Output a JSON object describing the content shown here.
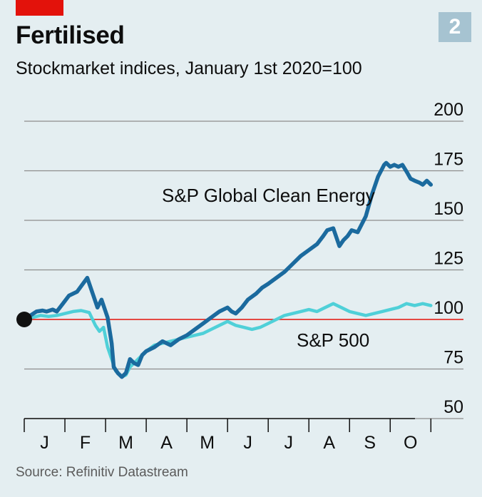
{
  "header": {
    "chart_number": "2",
    "title": "Fertilised",
    "subtitle": "Stockmarket indices, January 1st 2020=100",
    "source": "Source: Refinitiv Datastream"
  },
  "colors": {
    "background": "#e4eef1",
    "tag_red": "#e3120b",
    "badge": "#a6c3d1",
    "gridline": "#8d8d8d",
    "baseline_red": "#e3120b",
    "clean_energy": "#1b6a9e",
    "sp500": "#4fd0d8"
  },
  "chart_data": {
    "type": "line",
    "title": "Fertilised",
    "subtitle": "Stockmarket indices, January 1st 2020=100",
    "x_unit": "month of 2020",
    "xlim": [
      0,
      10.1
    ],
    "ylim": [
      50,
      200
    ],
    "y_ticks": [
      50,
      75,
      100,
      125,
      150,
      175,
      200
    ],
    "x_tick_labels": [
      "J",
      "F",
      "M",
      "A",
      "M",
      "J",
      "J",
      "A",
      "S",
      "O"
    ],
    "grid": true,
    "baseline": 100,
    "start_marker": [
      0,
      100
    ],
    "series": [
      {
        "name": "S&P Global Clean Energy",
        "color": "#1b6a9e",
        "x": [
          0,
          0.15,
          0.3,
          0.45,
          0.55,
          0.7,
          0.8,
          0.95,
          1.1,
          1.3,
          1.55,
          1.7,
          1.8,
          1.9,
          2.05,
          2.15,
          2.2,
          2.3,
          2.4,
          2.5,
          2.6,
          2.7,
          2.8,
          2.9,
          3.0,
          3.2,
          3.4,
          3.6,
          3.8,
          4.0,
          4.2,
          4.4,
          4.6,
          4.8,
          5.0,
          5.1,
          5.2,
          5.35,
          5.5,
          5.7,
          5.85,
          6.0,
          6.2,
          6.4,
          6.6,
          6.8,
          7.0,
          7.2,
          7.35,
          7.45,
          7.6,
          7.75,
          7.85,
          7.95,
          8.05,
          8.2,
          8.4,
          8.55,
          8.7,
          8.8,
          8.85,
          8.9,
          9.0,
          9.1,
          9.2,
          9.3,
          9.42,
          9.5,
          9.6,
          9.72,
          9.8,
          9.9,
          9.95,
          10.0
        ],
        "values": [
          100,
          102,
          104,
          104.5,
          104,
          105,
          104,
          108,
          112,
          114,
          121,
          112,
          106,
          110,
          101,
          88,
          76,
          73,
          71,
          73,
          80,
          78,
          77,
          82,
          84,
          86,
          89,
          87,
          90,
          92,
          95,
          98,
          101,
          104,
          106,
          104,
          103,
          106,
          110,
          113,
          116,
          118,
          121,
          124,
          128,
          132,
          135,
          138,
          142,
          145,
          146,
          137,
          140,
          142,
          145,
          144,
          152,
          163,
          172,
          176,
          178,
          179,
          177,
          178,
          177,
          178,
          174,
          171,
          170,
          169,
          168,
          170,
          169,
          168
        ]
      },
      {
        "name": "S&P 500",
        "color": "#4fd0d8",
        "x": [
          0,
          0.2,
          0.4,
          0.6,
          0.8,
          1.0,
          1.2,
          1.4,
          1.6,
          1.75,
          1.85,
          1.95,
          2.05,
          2.15,
          2.25,
          2.4,
          2.5,
          2.6,
          2.7,
          2.8,
          2.9,
          3.0,
          3.2,
          3.4,
          3.6,
          3.8,
          4.0,
          4.2,
          4.4,
          4.6,
          4.8,
          5.0,
          5.2,
          5.4,
          5.6,
          5.8,
          6.0,
          6.2,
          6.4,
          6.6,
          6.8,
          7.0,
          7.2,
          7.4,
          7.6,
          7.8,
          8.0,
          8.2,
          8.4,
          8.6,
          8.8,
          9.0,
          9.2,
          9.4,
          9.6,
          9.8,
          10.0
        ],
        "values": [
          100,
          101,
          102,
          101.5,
          102,
          103,
          104,
          104.5,
          103.5,
          97,
          94,
          96,
          86,
          80,
          74,
          71,
          72,
          76,
          78,
          80,
          82,
          84,
          87,
          88,
          89,
          90,
          91,
          92,
          93,
          95,
          97,
          99,
          97,
          96,
          95,
          96,
          98,
          100,
          102,
          103,
          104,
          105,
          104,
          106,
          108,
          106,
          104,
          103,
          102,
          103,
          104,
          105,
          106,
          108,
          107,
          108,
          107
        ]
      }
    ],
    "annotations": [
      {
        "text": "S&P Global Clean Energy",
        "series": "S&P Global Clean Energy"
      },
      {
        "text": "S&P 500",
        "series": "S&P 500"
      }
    ]
  }
}
